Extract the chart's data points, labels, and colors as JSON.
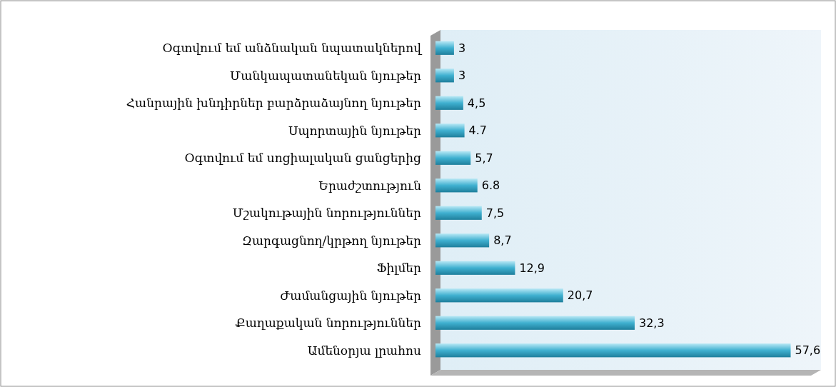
{
  "chart_data": {
    "type": "bar",
    "orientation": "horizontal",
    "color": "#3fb0d0",
    "categories": [
      "Օգտվում եմ անձնական նպատակներով",
      "Մանկապատանեկան նյութեր",
      "Հանրային խնդիրներ բարձրաձայնող նյութեր",
      "Սպորտային նյութեր",
      "Օգտվում եմ սոցիալական ցանցերից",
      "Երաժշտություն",
      "Մշակութային նորություններ",
      "Զարգացնող/կրթող նյութեր",
      "Ֆիլմեր",
      "Ժամանցային նյութեր",
      "Քաղաքական նորություններ",
      "Ամենօրյա լրահոս"
    ],
    "values": [
      3,
      3,
      4.5,
      4.7,
      5.7,
      6.8,
      7.5,
      8.7,
      12.9,
      20.7,
      32.3,
      57.6
    ],
    "value_labels": [
      "3",
      "3",
      "4,5",
      "4.7",
      "5,7",
      "6.8",
      "7,5",
      "8,7",
      "12,9",
      "20,7",
      "32,3",
      "57,6"
    ]
  }
}
